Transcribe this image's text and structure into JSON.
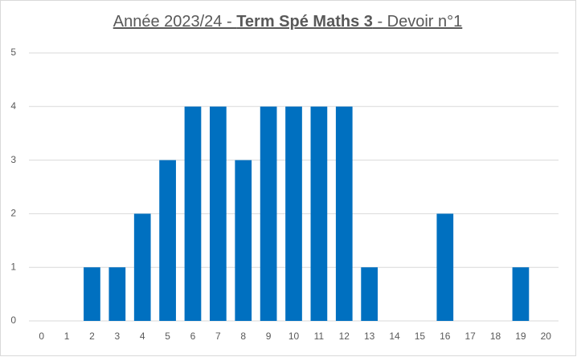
{
  "chart_data": {
    "type": "bar",
    "title": [
      "Année 2023/24 - ",
      "Term Spé Maths 3",
      " - Devoir n°1"
    ],
    "categories": [
      "0",
      "1",
      "2",
      "3",
      "4",
      "5",
      "6",
      "7",
      "8",
      "9",
      "10",
      "11",
      "12",
      "13",
      "14",
      "15",
      "16",
      "17",
      "18",
      "19",
      "20"
    ],
    "values": [
      0,
      0,
      1,
      1,
      2,
      3,
      4,
      4,
      3,
      4,
      4,
      4,
      4,
      1,
      0,
      0,
      2,
      0,
      0,
      1,
      0
    ],
    "color": "#0070c0",
    "ylim": [
      0,
      5
    ],
    "yticks": [
      0,
      1,
      2,
      3,
      4,
      5
    ],
    "grid": true
  }
}
